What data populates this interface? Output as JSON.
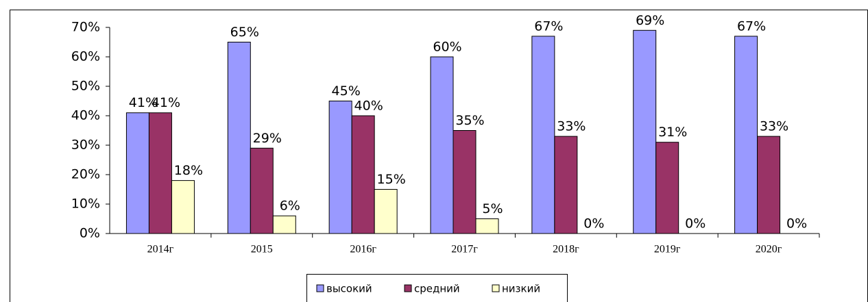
{
  "chart_data": {
    "type": "bar",
    "categories": [
      "2014г",
      "2015",
      "2016г",
      "2017г",
      "2018г",
      "2019г",
      "2020г"
    ],
    "series": [
      {
        "name": "высокий",
        "color": "#9999ff",
        "values": [
          41,
          65,
          45,
          60,
          67,
          69,
          67
        ],
        "value_labels": [
          "41%",
          "65%",
          "45%",
          "60%",
          "67%",
          "69%",
          "67%"
        ]
      },
      {
        "name": "средний",
        "color": "#993366",
        "values": [
          41,
          29,
          40,
          35,
          33,
          31,
          33
        ],
        "value_labels": [
          "41%",
          "29%",
          "40%",
          "35%",
          "33%",
          "31%",
          "33%"
        ]
      },
      {
        "name": "низкий",
        "color": "#ffffcc",
        "values": [
          18,
          6,
          15,
          5,
          0,
          0,
          0
        ],
        "value_labels": [
          "18%",
          "6%",
          "15%",
          "5%",
          "0%",
          "0%",
          "0%"
        ]
      }
    ],
    "ylim": [
      0,
      70
    ],
    "yticks": [
      {
        "value": 0,
        "label": "0%"
      },
      {
        "value": 10,
        "label": "10%"
      },
      {
        "value": 20,
        "label": "20%"
      },
      {
        "value": 30,
        "label": "30%"
      },
      {
        "value": 40,
        "label": "40%"
      },
      {
        "value": 50,
        "label": "50%"
      },
      {
        "value": 60,
        "label": "60%"
      },
      {
        "value": 70,
        "label": "70%"
      }
    ],
    "legend": "bottom"
  }
}
